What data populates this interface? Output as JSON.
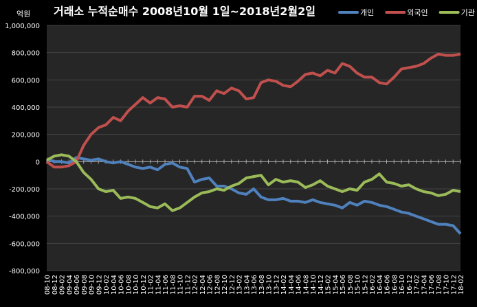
{
  "chart_data": {
    "type": "line",
    "title": "거래소 누적순매수 2008년10월 1일~2018년2월2일",
    "y_unit": "억원",
    "categories": [
      "08-10",
      "08-12",
      "09-02",
      "09-04",
      "09-06",
      "09-08",
      "09-10",
      "09-12",
      "10-02",
      "10-04",
      "10-06",
      "10-08",
      "10-10",
      "10-12",
      "11-02",
      "11-04",
      "11-06",
      "11-08",
      "11-10",
      "11-12",
      "12-02",
      "12-04",
      "12-06",
      "12-08",
      "12-10",
      "12-12",
      "13-02",
      "13-04",
      "13-06",
      "13-08",
      "13-10",
      "13-12",
      "14-02",
      "14-04",
      "14-06",
      "14-08",
      "14-10",
      "14-12",
      "15-02",
      "15-04",
      "15-06",
      "15-08",
      "15-10",
      "15-12",
      "16-02",
      "16-04",
      "16-06",
      "16-08",
      "16-10",
      "16-12",
      "17-02",
      "17-04",
      "17-06",
      "17-08",
      "17-10",
      "17-12",
      "18-02"
    ],
    "series": [
      {
        "name": "개인",
        "color": "#4f81bd",
        "values": [
          20000,
          0,
          0,
          -10000,
          30000,
          20000,
          10000,
          20000,
          0,
          -10000,
          0,
          -20000,
          -40000,
          -50000,
          -40000,
          -60000,
          -20000,
          -10000,
          -40000,
          -50000,
          -150000,
          -130000,
          -120000,
          -180000,
          -180000,
          -200000,
          -230000,
          -240000,
          -200000,
          -260000,
          -280000,
          -280000,
          -270000,
          -290000,
          -290000,
          -300000,
          -280000,
          -300000,
          -310000,
          -320000,
          -340000,
          -300000,
          -320000,
          -290000,
          -300000,
          -320000,
          -330000,
          -350000,
          -370000,
          -380000,
          -400000,
          -420000,
          -440000,
          -460000,
          -460000,
          -470000,
          -530000
        ]
      },
      {
        "name": "외국인",
        "color": "#c0504d",
        "values": [
          0,
          -40000,
          -40000,
          -30000,
          0,
          120000,
          200000,
          250000,
          270000,
          325000,
          300000,
          370000,
          420000,
          470000,
          430000,
          470000,
          460000,
          400000,
          410000,
          400000,
          480000,
          480000,
          450000,
          520000,
          500000,
          540000,
          520000,
          460000,
          470000,
          580000,
          600000,
          590000,
          560000,
          550000,
          590000,
          640000,
          650000,
          630000,
          670000,
          650000,
          720000,
          700000,
          650000,
          620000,
          620000,
          580000,
          570000,
          620000,
          680000,
          690000,
          700000,
          720000,
          760000,
          790000,
          780000,
          780000,
          790000
        ]
      },
      {
        "name": "기관",
        "color": "#9bbb59",
        "values": [
          10000,
          40000,
          50000,
          40000,
          0,
          -80000,
          -130000,
          -200000,
          -220000,
          -210000,
          -270000,
          -260000,
          -270000,
          -300000,
          -330000,
          -340000,
          -310000,
          -360000,
          -340000,
          -300000,
          -260000,
          -230000,
          -220000,
          -200000,
          -210000,
          -180000,
          -160000,
          -120000,
          -110000,
          -100000,
          -170000,
          -130000,
          -150000,
          -140000,
          -150000,
          -190000,
          -170000,
          -140000,
          -180000,
          -200000,
          -220000,
          -200000,
          -210000,
          -150000,
          -130000,
          -90000,
          -150000,
          -160000,
          -180000,
          -170000,
          -200000,
          -220000,
          -230000,
          -250000,
          -240000,
          -210000,
          -220000
        ]
      }
    ],
    "ylim": [
      -800000,
      1000000
    ],
    "yticks": [
      {
        "value": -800000,
        "label": "-800,000"
      },
      {
        "value": -600000,
        "label": "-600,000"
      },
      {
        "value": -400000,
        "label": "-400,000"
      },
      {
        "value": -200000,
        "label": "-200,000"
      },
      0,
      {
        "value": 200000,
        "label": "200,000"
      },
      {
        "value": 400000,
        "label": "400,000"
      },
      {
        "value": 600000,
        "label": "600,000"
      },
      {
        "value": 800000,
        "label": "800,000"
      },
      {
        "value": 1000000,
        "label": "1,000,000"
      }
    ],
    "grid": true,
    "legend": "top-right"
  }
}
